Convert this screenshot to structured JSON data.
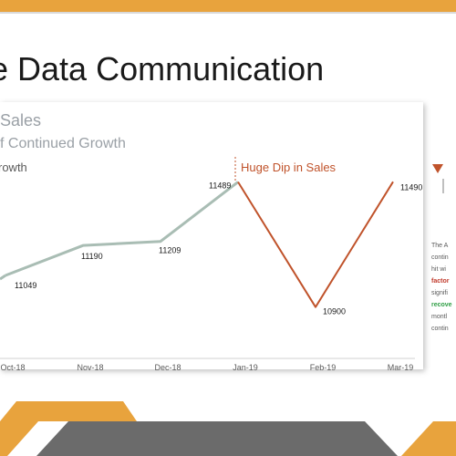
{
  "slide": {
    "title": "e Data Communication"
  },
  "chart_data": {
    "type": "line",
    "title": "Sales",
    "subtitle": "f Continued Growth",
    "categories": [
      "Oct-18",
      "Nov-18",
      "Dec-18",
      "Jan-19",
      "Feb-19",
      "Mar-19"
    ],
    "series": [
      {
        "name": "growth",
        "color": "#a9bdb4",
        "x": [
          "Oct-18",
          "Nov-18",
          "Dec-18",
          "Jan-19"
        ],
        "values": [
          11049,
          11190,
          11209,
          11489
        ]
      },
      {
        "name": "dip",
        "color": "#c0532b",
        "x": [
          "Jan-19",
          "Feb-19",
          "Mar-19"
        ],
        "values": [
          11489,
          10900,
          11490
        ]
      }
    ],
    "data_labels": [
      {
        "x": "Oct-18",
        "label": "11049"
      },
      {
        "x": "Nov-18",
        "label": "11190"
      },
      {
        "x": "Dec-18",
        "label": "11209"
      },
      {
        "x": "Jan-19",
        "label": "11489"
      },
      {
        "x": "Feb-19",
        "label": "10900"
      },
      {
        "x": "Mar-19",
        "label": "11490"
      }
    ],
    "annotations": {
      "left": "rowth",
      "right": "Huge Dip in Sales"
    },
    "ylim": [
      10800,
      11560
    ],
    "grid": false
  },
  "side_note": {
    "lines": [
      "The A",
      "contin",
      "hit wi",
      "factor",
      "signifi",
      "recove",
      "montl",
      "contin"
    ],
    "marker_color": "#c0532b"
  },
  "colors": {
    "accent_orange": "#e8a33d",
    "dark_gray": "#595959"
  }
}
